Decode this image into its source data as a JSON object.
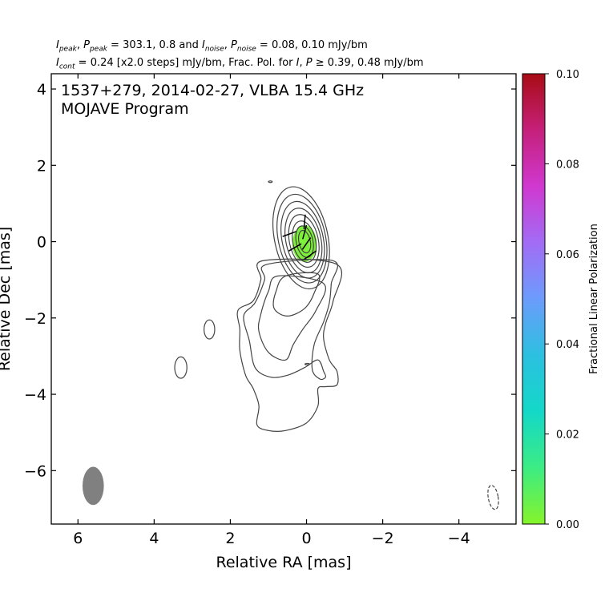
{
  "header": {
    "line1": {
      "peak_sym": "I",
      "peak_sub": "peak",
      "ppeak_sym": "P",
      "ppeak_sub": "peak",
      "mid1": " = 303.1, 0.8 and ",
      "noise_sym": "I",
      "noise_sub": "noise",
      "pnoise_sym": "P",
      "pnoise_sub": "noise",
      "tail": " = 0.08, 0.10 mJy/bm"
    },
    "line2": {
      "cont_sym": "I",
      "cont_sub": "cont",
      "mid": " = 0.24 [x2.0 steps] mJy/bm, Frac. Pol. for ",
      "i_sym": "I",
      "comma": ", ",
      "p_sym": "P",
      "tail": " ≥ 0.39, 0.48 mJy/bm"
    }
  },
  "chart_data": {
    "type": "contour",
    "title_line1": "1537+279, 2014-02-27, VLBA 15.4 GHz",
    "title_line2": "MOJAVE Program",
    "xlabel": "Relative RA [mas]",
    "ylabel": "Relative Dec [mas]",
    "xlim": [
      6.7,
      -5.5
    ],
    "ylim": [
      -7.4,
      4.4
    ],
    "xticks": [
      6,
      4,
      2,
      0,
      -2,
      -4
    ],
    "yticks": [
      4,
      2,
      0,
      -2,
      -4,
      -6
    ],
    "xtick_labels": [
      "6",
      "4",
      "2",
      "0",
      "−2",
      "−4"
    ],
    "ytick_labels": [
      "4",
      "2",
      "0",
      "−2",
      "−4",
      "−6"
    ],
    "core_contours": [
      {
        "cx": 0.05,
        "cy": 0.0,
        "rx": 0.15,
        "ry": 0.3
      },
      {
        "cx": 0.05,
        "cy": 0.0,
        "rx": 0.22,
        "ry": 0.42
      },
      {
        "cx": 0.06,
        "cy": 0.0,
        "rx": 0.3,
        "ry": 0.55
      },
      {
        "cx": 0.07,
        "cy": 0.02,
        "rx": 0.38,
        "ry": 0.7
      },
      {
        "cx": 0.08,
        "cy": 0.03,
        "rx": 0.46,
        "ry": 0.86
      },
      {
        "cx": 0.1,
        "cy": 0.05,
        "rx": 0.54,
        "ry": 1.02
      },
      {
        "cx": 0.12,
        "cy": 0.08,
        "rx": 0.62,
        "ry": 1.18
      },
      {
        "cx": 0.14,
        "cy": 0.1,
        "rx": 0.7,
        "ry": 1.36
      }
    ],
    "jet_contours": [
      [
        [
          0.55,
          -0.9
        ],
        [
          0.8,
          -1.3
        ],
        [
          0.85,
          -1.75
        ],
        [
          0.5,
          -1.95
        ],
        [
          0.05,
          -1.75
        ],
        [
          -0.2,
          -1.35
        ],
        [
          -0.3,
          -0.85
        ]
      ],
      [
        [
          0.75,
          -0.9
        ],
        [
          1.0,
          -1.3
        ],
        [
          1.2,
          -1.9
        ],
        [
          1.25,
          -2.35
        ],
        [
          1.0,
          -2.9
        ],
        [
          0.55,
          -3.1
        ],
        [
          0.35,
          -2.7
        ],
        [
          0.1,
          -2.3
        ],
        [
          -0.25,
          -1.8
        ],
        [
          -0.45,
          -1.1
        ]
      ],
      [
        [
          1.05,
          -0.6
        ],
        [
          1.1,
          -1.0
        ],
        [
          1.35,
          -1.6
        ],
        [
          1.65,
          -1.95
        ],
        [
          1.5,
          -2.6
        ],
        [
          1.35,
          -3.3
        ],
        [
          0.95,
          -3.55
        ],
        [
          0.5,
          -3.5
        ],
        [
          0.05,
          -3.3
        ],
        [
          -0.3,
          -3.1
        ],
        [
          -0.45,
          -3.4
        ],
        [
          -0.5,
          -3.55
        ],
        [
          -0.35,
          -3.6
        ],
        [
          -0.15,
          -3.35
        ],
        [
          -0.2,
          -2.7
        ],
        [
          -0.45,
          -2.1
        ],
        [
          -0.6,
          -1.6
        ],
        [
          -0.65,
          -1.1
        ],
        [
          -0.7,
          -0.5
        ]
      ],
      [
        [
          1.15,
          -0.5
        ],
        [
          1.2,
          -1.0
        ],
        [
          1.4,
          -1.55
        ],
        [
          1.8,
          -1.8
        ],
        [
          1.75,
          -2.3
        ],
        [
          1.75,
          -2.85
        ],
        [
          1.6,
          -3.5
        ],
        [
          1.4,
          -3.85
        ],
        [
          1.25,
          -4.3
        ],
        [
          1.3,
          -4.8
        ],
        [
          1.0,
          -4.95
        ],
        [
          0.55,
          -4.95
        ],
        [
          0.0,
          -4.75
        ],
        [
          -0.3,
          -4.3
        ],
        [
          -0.3,
          -3.85
        ],
        [
          -0.5,
          -3.8
        ],
        [
          -0.8,
          -3.75
        ],
        [
          -0.8,
          -3.4
        ],
        [
          -0.6,
          -3.1
        ],
        [
          -0.45,
          -2.55
        ],
        [
          -0.5,
          -2.15
        ],
        [
          -0.7,
          -1.55
        ],
        [
          -0.8,
          -0.6
        ]
      ]
    ],
    "islands": [
      {
        "cx": 2.55,
        "cy": -2.3,
        "rx": 0.14,
        "ry": 0.25,
        "dashed": false
      },
      {
        "cx": 3.3,
        "cy": -3.3,
        "rx": 0.16,
        "ry": 0.28,
        "dashed": false
      },
      {
        "cx": 0.95,
        "cy": 1.57,
        "rx": 0.05,
        "ry": 0.02,
        "dashed": false
      },
      {
        "cx": -0.02,
        "cy": -3.21,
        "rx": 0.06,
        "ry": 0.02,
        "dashed": false
      },
      {
        "cx": -4.9,
        "cy": -6.7,
        "rx": 0.13,
        "ry": 0.32,
        "dashed": true
      }
    ],
    "pol_region": {
      "cx": 0.05,
      "cy": -0.05,
      "rx": 0.32,
      "ry": 0.48,
      "color": "#7ef03c"
    },
    "evpa_vectors": [
      {
        "x": 0.45,
        "y": 0.2,
        "angle_deg": 70
      },
      {
        "x": 0.3,
        "y": -0.15,
        "angle_deg": 60
      },
      {
        "x": 0.05,
        "y": 0.52,
        "angle_deg": 5
      },
      {
        "x": 0.0,
        "y": -0.05,
        "angle_deg": 35
      },
      {
        "x": -0.1,
        "y": -0.35,
        "angle_deg": 55
      },
      {
        "x": 0.05,
        "y": 0.25,
        "angle_deg": 15
      }
    ],
    "beam": {
      "cx": 5.6,
      "cy": -6.4,
      "rx": 0.28,
      "ry": 0.5,
      "color": "#808080"
    },
    "colorbar": {
      "label": "Fractional Linear Polarization",
      "range": [
        0.0,
        0.1
      ],
      "ticks": [
        "0.00",
        "0.02",
        "0.04",
        "0.06",
        "0.08",
        "0.10"
      ],
      "stops": [
        "#86f42a",
        "#3cec84",
        "#13d8c8",
        "#2cc0e0",
        "#6c9cfc",
        "#a26cf4",
        "#d038d0",
        "#c5207a",
        "#a80c14"
      ]
    }
  }
}
